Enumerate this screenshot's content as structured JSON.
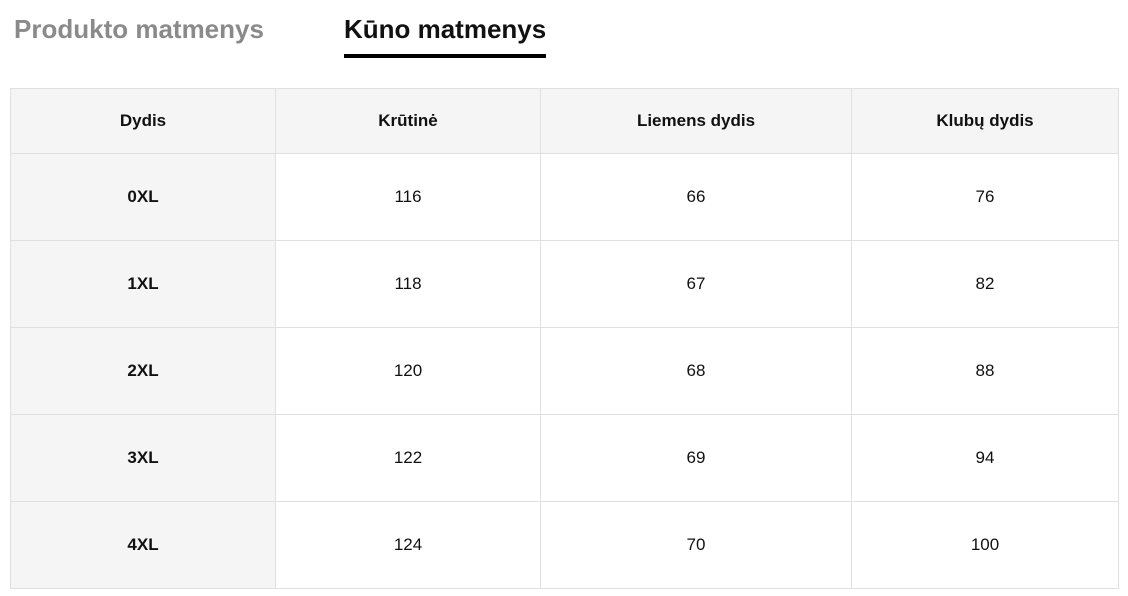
{
  "tabs": [
    {
      "label": "Produkto matmenys",
      "active": false
    },
    {
      "label": "Kūno matmenys",
      "active": true
    }
  ],
  "table": {
    "columns": [
      "Dydis",
      "Krūtinė",
      "Liemens dydis",
      "Klubų dydis"
    ],
    "rows": [
      {
        "size": "0XL",
        "values": [
          116,
          66,
          76
        ]
      },
      {
        "size": "1XL",
        "values": [
          118,
          67,
          82
        ]
      },
      {
        "size": "2XL",
        "values": [
          120,
          68,
          88
        ]
      },
      {
        "size": "3XL",
        "values": [
          122,
          69,
          94
        ]
      },
      {
        "size": "4XL",
        "values": [
          124,
          70,
          100
        ]
      }
    ]
  },
  "colors": {
    "inactive_tab_text": "#8a8a8a",
    "active_tab_text": "#111111",
    "active_tab_underline": "#000000",
    "header_background": "#f5f5f6",
    "cell_border": "#e0e0e0",
    "cell_background": "#ffffff"
  }
}
